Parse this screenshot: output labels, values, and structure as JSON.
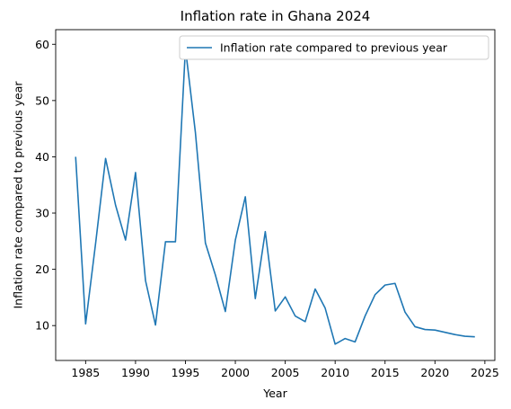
{
  "chart_data": {
    "type": "line",
    "title": "Inflation rate in Ghana 2024",
    "xlabel": "Year",
    "ylabel": "Inflation rate compared to previous year",
    "xlim": [
      1982,
      2026
    ],
    "ylim": [
      3.8,
      62.6
    ],
    "xticks": [
      1985,
      1990,
      1995,
      2000,
      2005,
      2010,
      2015,
      2020,
      2025
    ],
    "yticks": [
      10,
      20,
      30,
      40,
      50,
      60
    ],
    "legend_position": "top-right",
    "grid": false,
    "series": [
      {
        "name": "Inflation rate compared to previous year",
        "color": "#1f77b4",
        "x": [
          1984,
          1985,
          1986,
          1987,
          1988,
          1989,
          1990,
          1991,
          1992,
          1993,
          1994,
          1995,
          1996,
          1997,
          1998,
          1999,
          2000,
          2001,
          2002,
          2003,
          2004,
          2005,
          2006,
          2007,
          2008,
          2009,
          2010,
          2011,
          2012,
          2013,
          2014,
          2015,
          2016,
          2017,
          2018,
          2019,
          2020,
          2021,
          2022,
          2023,
          2024
        ],
        "values": [
          40.0,
          10.3,
          24.6,
          39.7,
          31.4,
          25.2,
          37.2,
          18.0,
          10.1,
          24.9,
          24.9,
          59.3,
          44.3,
          24.7,
          19.0,
          12.5,
          25.2,
          32.9,
          14.8,
          26.7,
          12.6,
          15.1,
          11.7,
          10.7,
          16.5,
          13.1,
          6.7,
          7.7,
          7.1,
          11.7,
          15.5,
          17.2,
          17.5,
          12.4,
          9.8,
          9.3,
          9.2,
          8.8,
          8.4,
          8.1,
          8.0
        ]
      }
    ]
  }
}
